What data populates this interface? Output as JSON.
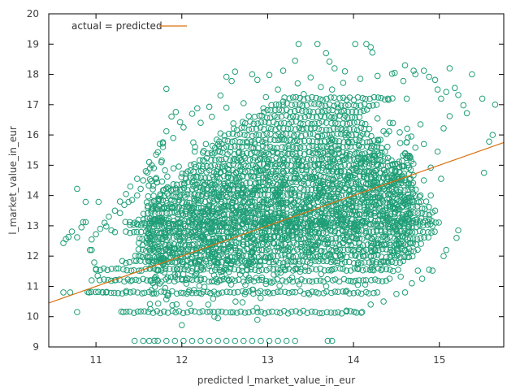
{
  "chart_data": {
    "type": "scatter",
    "xlabel": "predicted l_market_value_in_eur",
    "ylabel": "l_market_value_in_eur",
    "xlim": [
      10.45,
      15.75
    ],
    "ylim": [
      9,
      20
    ],
    "xticks": [
      "11",
      "12",
      "13",
      "14",
      "15"
    ],
    "yticks": [
      "9",
      "10",
      "11",
      "12",
      "13",
      "14",
      "15",
      "16",
      "17",
      "18",
      "19",
      "20"
    ],
    "grid": false,
    "legend_position": "top-left",
    "legend": {
      "line_label": "actual = predicted"
    },
    "colors": {
      "points": "#1f9e77",
      "line": "#d9700f",
      "axis": "#000000"
    },
    "series": [
      {
        "type": "line",
        "x": [
          10.45,
          15.75
        ],
        "y": [
          10.45,
          15.75
        ]
      },
      {
        "type": "scatter",
        "points": [
          [
            10.62,
            12.43
          ],
          [
            10.65,
            12.56
          ],
          [
            10.68,
            12.63
          ],
          [
            10.72,
            12.81
          ],
          [
            10.78,
            12.62
          ],
          [
            10.83,
            12.95
          ],
          [
            10.85,
            13.12
          ],
          [
            10.88,
            13.12
          ],
          [
            10.93,
            12.2
          ],
          [
            10.95,
            12.2
          ],
          [
            10.98,
            11.79
          ],
          [
            11.0,
            11.55
          ],
          [
            11.02,
            11.35
          ],
          [
            10.78,
            14.22
          ],
          [
            10.88,
            13.79
          ],
          [
            11.03,
            13.79
          ],
          [
            11.12,
            12.98
          ],
          [
            11.18,
            12.85
          ],
          [
            11.22,
            12.79
          ],
          [
            11.28,
            13.42
          ],
          [
            11.33,
            13.69
          ],
          [
            11.38,
            13.79
          ],
          [
            11.42,
            13.85
          ],
          [
            11.48,
            14.0
          ],
          [
            11.52,
            14.22
          ],
          [
            11.55,
            14.5
          ],
          [
            11.6,
            14.76
          ],
          [
            11.63,
            14.9
          ],
          [
            11.65,
            15.0
          ],
          [
            11.72,
            15.43
          ],
          [
            11.78,
            15.76
          ],
          [
            11.82,
            16.12
          ],
          [
            11.88,
            16.61
          ],
          [
            11.93,
            16.76
          ],
          [
            11.98,
            16.42
          ],
          [
            11.82,
            17.52
          ],
          [
            12.12,
            16.7
          ],
          [
            12.18,
            16.88
          ],
          [
            12.32,
            16.93
          ],
          [
            12.45,
            17.3
          ],
          [
            12.52,
            17.92
          ],
          [
            12.58,
            17.78
          ],
          [
            12.62,
            18.09
          ],
          [
            12.82,
            18.0
          ],
          [
            12.88,
            17.82
          ],
          [
            13.02,
            17.98
          ],
          [
            13.18,
            18.12
          ],
          [
            13.32,
            18.45
          ],
          [
            13.36,
            19.0
          ],
          [
            13.58,
            19.0
          ],
          [
            13.68,
            18.7
          ],
          [
            13.72,
            18.42
          ],
          [
            13.78,
            18.2
          ],
          [
            13.9,
            18.1
          ],
          [
            14.02,
            19.0
          ],
          [
            14.15,
            19.0
          ],
          [
            14.2,
            18.9
          ],
          [
            14.22,
            18.72
          ],
          [
            14.45,
            18.02
          ],
          [
            14.58,
            17.78
          ],
          [
            14.72,
            18.0
          ],
          [
            14.82,
            18.12
          ],
          [
            14.88,
            17.92
          ],
          [
            14.95,
            17.82
          ],
          [
            14.98,
            17.5
          ],
          [
            15.02,
            17.2
          ],
          [
            15.08,
            17.42
          ],
          [
            15.18,
            17.55
          ],
          [
            15.22,
            17.32
          ],
          [
            15.28,
            16.98
          ],
          [
            15.32,
            16.72
          ],
          [
            15.12,
            16.62
          ],
          [
            15.05,
            16.22
          ],
          [
            14.98,
            15.45
          ],
          [
            14.9,
            14.92
          ],
          [
            14.82,
            14.5
          ],
          [
            14.78,
            14.0
          ],
          [
            14.72,
            13.2
          ],
          [
            14.65,
            12.8
          ],
          [
            14.58,
            12.65
          ],
          [
            14.52,
            12.58
          ],
          [
            14.6,
            12.2
          ],
          [
            14.48,
            11.95
          ],
          [
            14.38,
            11.82
          ],
          [
            14.22,
            11.55
          ],
          [
            14.05,
            11.05
          ],
          [
            13.92,
            10.85
          ],
          [
            14.1,
            10.15
          ],
          [
            15.22,
            12.85
          ],
          [
            15.2,
            12.6
          ],
          [
            15.08,
            12.2
          ],
          [
            15.05,
            12.0
          ],
          [
            14.88,
            11.55
          ],
          [
            14.92,
            11.52
          ],
          [
            15.5,
            17.2
          ],
          [
            15.62,
            16.0
          ],
          [
            15.65,
            17.0
          ],
          [
            15.52,
            14.75
          ],
          [
            15.58,
            15.78
          ],
          [
            15.38,
            18.0
          ],
          [
            15.12,
            18.2
          ],
          [
            14.6,
            18.3
          ],
          [
            14.62,
            17.2
          ],
          [
            14.4,
            17.2
          ],
          [
            10.92,
            10.8
          ],
          [
            10.95,
            11.2
          ],
          [
            11.08,
            10.8
          ],
          [
            11.12,
            10.8
          ],
          [
            11.22,
            11.2
          ],
          [
            10.78,
            10.15
          ],
          [
            10.62,
            10.8
          ],
          [
            10.7,
            10.8
          ],
          [
            11.52,
            12.0
          ],
          [
            11.72,
            11.55
          ],
          [
            11.42,
            11.2
          ],
          [
            11.35,
            10.8
          ],
          [
            11.32,
            10.15
          ],
          [
            11.45,
            9.2
          ],
          [
            11.55,
            9.2
          ],
          [
            11.62,
            9.2
          ],
          [
            11.68,
            9.2
          ],
          [
            11.72,
            9.2
          ],
          [
            11.82,
            9.2
          ],
          [
            11.92,
            9.2
          ],
          [
            12.02,
            9.2
          ],
          [
            12.12,
            9.2
          ],
          [
            12.22,
            9.2
          ],
          [
            12.32,
            9.2
          ],
          [
            12.42,
            9.2
          ],
          [
            12.52,
            9.2
          ],
          [
            12.62,
            9.2
          ],
          [
            12.72,
            9.2
          ],
          [
            12.82,
            9.2
          ],
          [
            12.92,
            9.2
          ],
          [
            13.02,
            9.2
          ],
          [
            13.12,
            9.2
          ],
          [
            13.22,
            9.2
          ],
          [
            13.32,
            9.2
          ],
          [
            13.7,
            9.2
          ],
          [
            13.75,
            9.2
          ],
          [
            12.0,
            9.72
          ],
          [
            12.88,
            9.9
          ],
          [
            12.42,
            9.95
          ],
          [
            12.38,
            10.0
          ],
          [
            13.92,
            10.2
          ],
          [
            14.2,
            10.4
          ],
          [
            14.35,
            10.5
          ],
          [
            14.5,
            10.75
          ],
          [
            14.6,
            10.8
          ],
          [
            14.68,
            11.1
          ],
          [
            14.42,
            11.25
          ],
          [
            14.55,
            11.32
          ],
          [
            14.75,
            11.52
          ],
          [
            14.8,
            11.25
          ],
          [
            14.58,
            13.22
          ],
          [
            14.65,
            13.05
          ],
          [
            14.9,
            14.0
          ],
          [
            14.95,
            13.5
          ],
          [
            15.02,
            14.55
          ],
          [
            14.25,
            15.3
          ],
          [
            14.28,
            15.72
          ],
          [
            14.35,
            16.12
          ],
          [
            14.42,
            16.4
          ],
          [
            14.62,
            15.75
          ],
          [
            14.6,
            15.38
          ],
          [
            14.72,
            15.58
          ],
          [
            14.82,
            15.7
          ],
          [
            14.78,
            16.35
          ],
          [
            13.82,
            16.9
          ],
          [
            13.75,
            17.5
          ],
          [
            13.5,
            17.9
          ],
          [
            13.35,
            17.7
          ],
          [
            13.12,
            17.5
          ],
          [
            12.98,
            17.25
          ],
          [
            12.72,
            17.05
          ],
          [
            12.52,
            16.9
          ],
          [
            12.35,
            16.6
          ],
          [
            12.22,
            16.4
          ],
          [
            12.02,
            16.25
          ],
          [
            11.9,
            15.9
          ],
          [
            11.78,
            15.6
          ],
          [
            11.7,
            15.35
          ],
          [
            11.62,
            15.1
          ],
          [
            11.58,
            14.8
          ],
          [
            11.48,
            14.55
          ],
          [
            11.4,
            14.3
          ],
          [
            11.35,
            14.05
          ],
          [
            11.28,
            13.8
          ],
          [
            11.22,
            13.5
          ],
          [
            11.15,
            13.3
          ],
          [
            11.1,
            13.1
          ],
          [
            11.05,
            12.9
          ],
          [
            11.0,
            12.72
          ],
          [
            10.95,
            12.55
          ],
          [
            12.15,
            15.45
          ],
          [
            12.28,
            15.7
          ],
          [
            12.45,
            16.05
          ],
          [
            12.6,
            16.38
          ],
          [
            12.78,
            16.62
          ],
          [
            12.95,
            16.88
          ],
          [
            13.18,
            17.1
          ],
          [
            13.42,
            17.35
          ],
          [
            13.62,
            17.58
          ],
          [
            13.88,
            17.72
          ],
          [
            14.08,
            17.85
          ],
          [
            14.28,
            17.95
          ],
          [
            14.48,
            18.05
          ],
          [
            14.7,
            18.12
          ],
          [
            13.55,
            14.6
          ],
          [
            13.6,
            14.25
          ],
          [
            13.72,
            13.9
          ],
          [
            13.8,
            13.55
          ],
          [
            13.85,
            13.2
          ],
          [
            13.92,
            12.9
          ],
          [
            14.0,
            12.6
          ],
          [
            14.08,
            12.3
          ],
          [
            14.12,
            12.0
          ],
          [
            13.15,
            15.95
          ],
          [
            13.25,
            15.55
          ],
          [
            13.35,
            15.2
          ],
          [
            13.45,
            14.95
          ],
          [
            12.85,
            15.7
          ],
          [
            12.95,
            15.35
          ],
          [
            12.6,
            15.15
          ],
          [
            12.7,
            14.85
          ],
          [
            12.4,
            14.7
          ],
          [
            12.5,
            14.4
          ],
          [
            12.15,
            14.35
          ],
          [
            12.3,
            14.05
          ],
          [
            11.95,
            13.95
          ],
          [
            12.05,
            13.7
          ],
          [
            11.8,
            13.6
          ]
        ]
      }
    ]
  }
}
